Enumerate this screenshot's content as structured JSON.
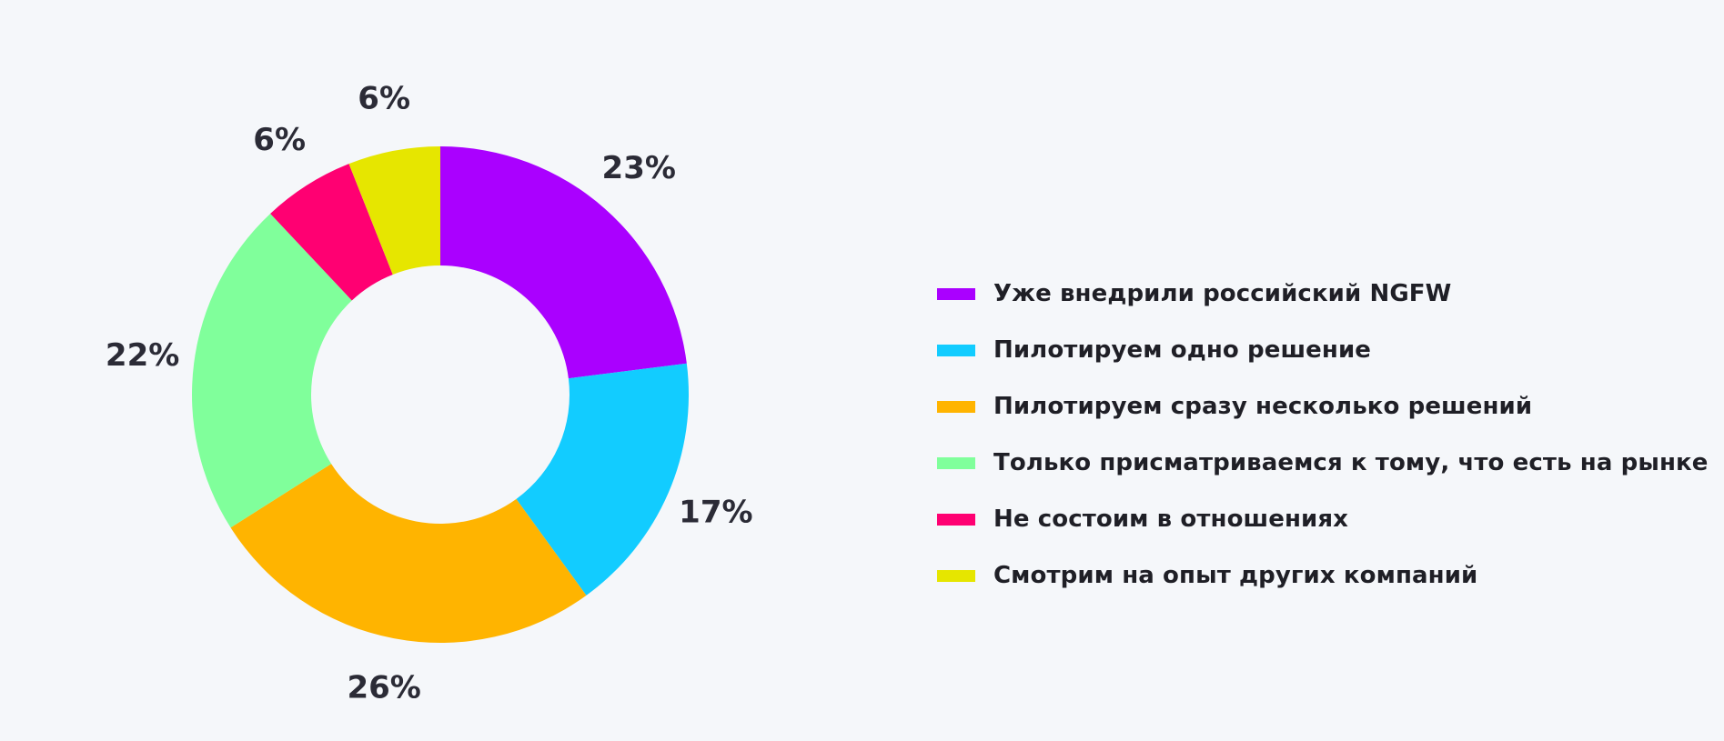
{
  "chart_data": {
    "type": "pie",
    "subtype": "donut",
    "legend_position": "right",
    "slices": [
      {
        "label": "Уже внедрили российский NGFW",
        "value": 23,
        "value_label": "23%",
        "color": "#aa00ff"
      },
      {
        "label": "Пилотируем одно решение",
        "value": 17,
        "value_label": "17%",
        "color": "#12ccff"
      },
      {
        "label": "Пилотируем сразу несколько решений",
        "value": 26,
        "value_label": "26%",
        "color": "#ffb400"
      },
      {
        "label": "Только присматриваемся к тому, что есть на рынке",
        "value": 22,
        "value_label": "22%",
        "color": "#80ff9b"
      },
      {
        "label": "Не состоим в отношениях",
        "value": 6,
        "value_label": "6%",
        "color": "#ff0072"
      },
      {
        "label": "Смотрим на опыт других компаний",
        "value": 6,
        "value_label": "6%",
        "color": "#e6e600"
      }
    ]
  }
}
